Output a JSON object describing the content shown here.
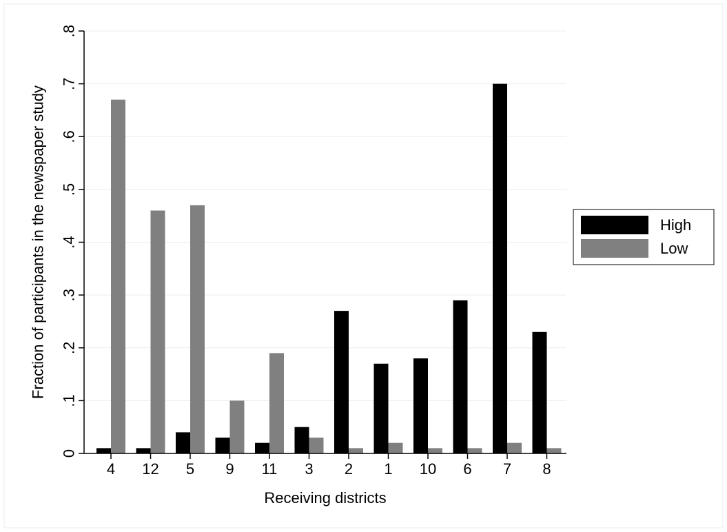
{
  "chart_data": {
    "type": "bar",
    "title": "",
    "xlabel": "Receiving districts",
    "ylabel": "Fraction of participants in the newspaper study",
    "categories": [
      "4",
      "12",
      "5",
      "9",
      "11",
      "3",
      "2",
      "1",
      "10",
      "6",
      "7",
      "8"
    ],
    "series": [
      {
        "name": "High",
        "color": "#000000",
        "values": [
          0.01,
          0.01,
          0.04,
          0.03,
          0.02,
          0.05,
          0.27,
          0.17,
          0.18,
          0.29,
          0.7,
          0.23
        ]
      },
      {
        "name": "Low",
        "color": "#808080",
        "values": [
          0.67,
          0.46,
          0.47,
          0.1,
          0.19,
          0.03,
          0.01,
          0.02,
          0.01,
          0.01,
          0.02,
          0.01
        ]
      }
    ],
    "ylim": [
      0,
      0.8
    ],
    "yticks": [
      0,
      0.1,
      0.2,
      0.3,
      0.4,
      0.5,
      0.6,
      0.7,
      0.8
    ],
    "ytick_labels": [
      "0",
      ".1",
      ".2",
      ".3",
      ".4",
      ".5",
      ".6",
      ".7",
      ".8"
    ],
    "grid": true,
    "legend_position": "right"
  }
}
